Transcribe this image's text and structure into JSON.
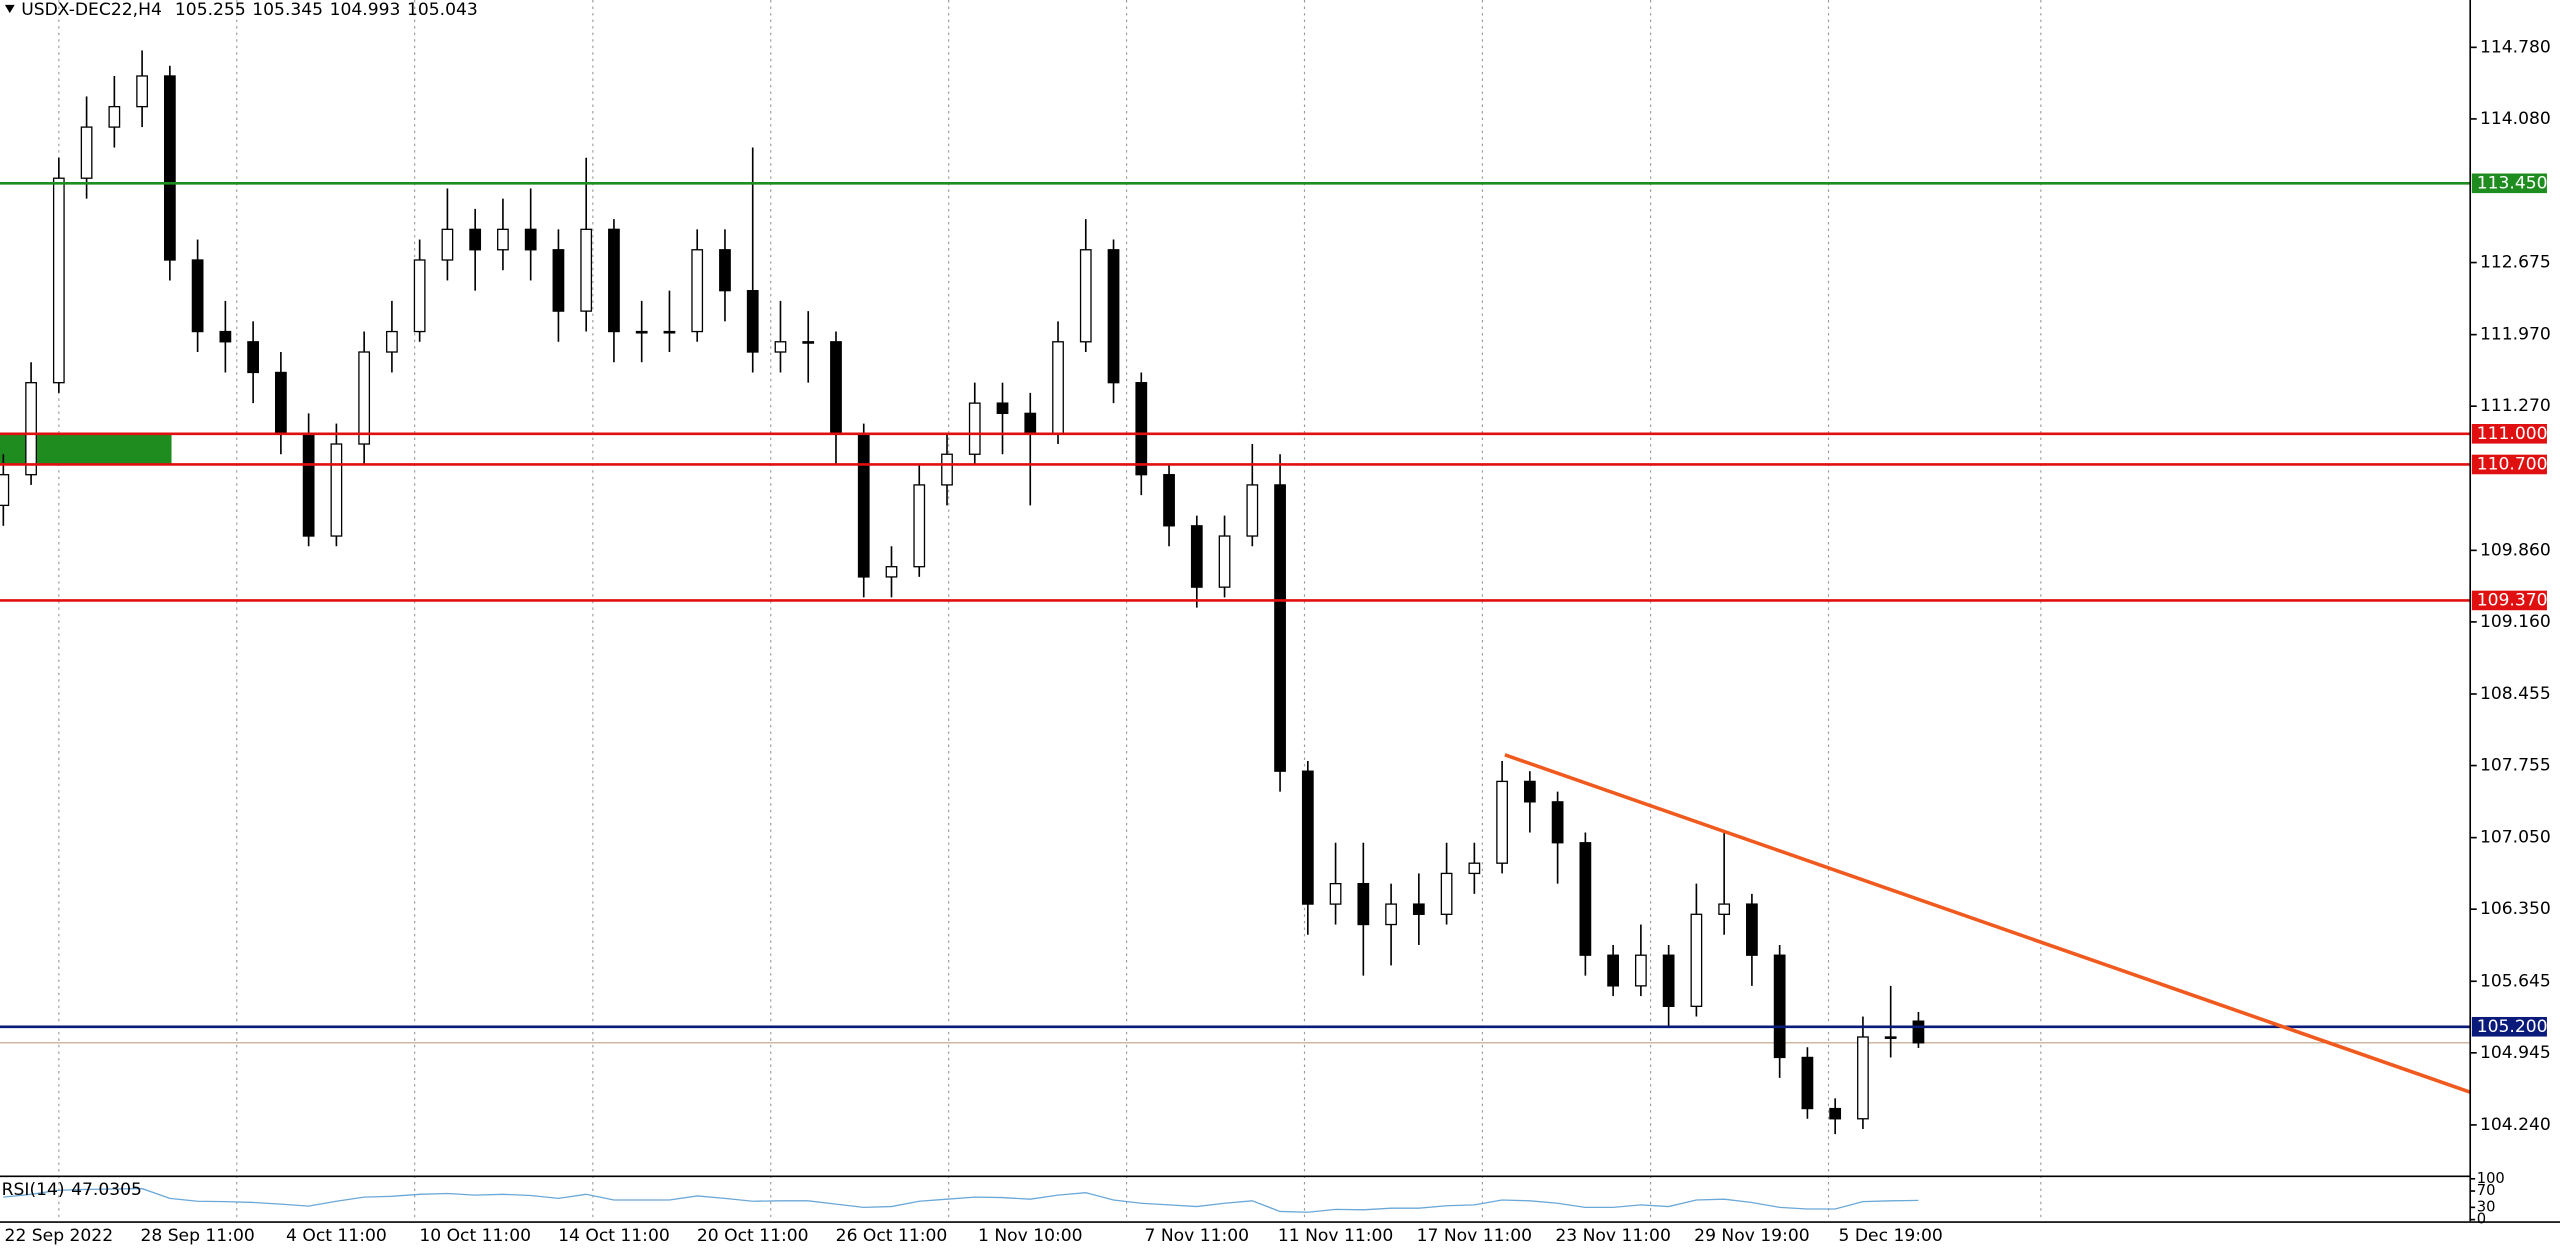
{
  "chart_data": {
    "type": "candlestick",
    "title": "USDX-DEC22,H4",
    "categories": [
      null,
      null,
      "22 Sep 2022",
      null,
      null,
      null,
      null,
      "28 Sep 11:00",
      null,
      null,
      null,
      null,
      "4 Oct 11:00",
      null,
      null,
      null,
      null,
      "10 Oct 11:00",
      null,
      null,
      null,
      null,
      "14 Oct 11:00",
      null,
      null,
      null,
      null,
      "20 Oct 11:00",
      null,
      null,
      null,
      null,
      "26 Oct 11:00",
      null,
      null,
      null,
      null,
      "1 Nov 10:00",
      null,
      null,
      null,
      null,
      null,
      "7 Nov 11:00",
      null,
      null,
      null,
      null,
      "11 Nov 11:00",
      null,
      null,
      null,
      null,
      "17 Nov 11:00",
      null,
      null,
      null,
      null,
      "23 Nov 11:00",
      null,
      null,
      null,
      null,
      "29 Nov 19:00",
      null,
      null,
      null,
      null,
      "5 Dec 19:00",
      null
    ],
    "open": [
      110.3,
      110.6,
      111.5,
      113.5,
      114.0,
      114.2,
      114.5,
      112.7,
      112.0,
      111.9,
      111.6,
      111.0,
      110.0,
      110.9,
      111.8,
      112.0,
      112.7,
      113.0,
      112.8,
      113.0,
      112.8,
      112.2,
      113.0,
      112.0,
      112.0,
      112.0,
      112.8,
      112.4,
      111.8,
      111.9,
      111.9,
      111.0,
      109.6,
      109.7,
      110.5,
      110.8,
      111.3,
      111.2,
      111.0,
      111.9,
      112.8,
      111.5,
      110.6,
      110.1,
      109.5,
      110.0,
      110.5,
      107.7,
      106.4,
      106.6,
      106.2,
      106.4,
      106.3,
      106.7,
      106.8,
      107.6,
      107.4,
      107.0,
      105.9,
      105.6,
      105.9,
      105.4,
      106.3,
      106.4,
      105.9,
      104.9,
      104.4,
      104.3,
      105.1,
      105.255
    ],
    "high": [
      110.8,
      111.7,
      113.7,
      114.3,
      114.5,
      114.75,
      114.6,
      112.9,
      112.3,
      112.1,
      111.8,
      111.2,
      111.1,
      112.0,
      112.3,
      112.9,
      113.4,
      113.2,
      113.3,
      113.4,
      113.0,
      113.7,
      113.1,
      112.3,
      112.4,
      113.0,
      113.0,
      113.8,
      112.3,
      112.2,
      112.0,
      111.1,
      109.9,
      110.7,
      111.0,
      111.5,
      111.5,
      111.4,
      112.1,
      113.1,
      112.9,
      111.6,
      110.7,
      110.2,
      110.2,
      110.9,
      110.8,
      107.8,
      107.0,
      107.0,
      106.6,
      106.7,
      107.0,
      107.0,
      107.8,
      107.7,
      107.5,
      107.1,
      106.0,
      106.2,
      106.0,
      106.6,
      107.1,
      106.5,
      106.0,
      105.0,
      104.5,
      105.3,
      105.6,
      105.345
    ],
    "low": [
      110.1,
      110.5,
      111.4,
      113.3,
      113.8,
      114.0,
      112.5,
      111.8,
      111.6,
      111.3,
      110.8,
      109.9,
      109.9,
      110.7,
      111.6,
      111.9,
      112.5,
      112.4,
      112.6,
      112.5,
      111.9,
      112.0,
      111.7,
      111.7,
      111.8,
      111.9,
      112.1,
      111.6,
      111.6,
      111.5,
      110.7,
      109.4,
      109.4,
      109.6,
      110.3,
      110.7,
      110.8,
      110.3,
      110.9,
      111.8,
      111.3,
      110.4,
      109.9,
      109.3,
      109.4,
      109.9,
      107.5,
      106.1,
      106.2,
      105.7,
      105.8,
      106.0,
      106.2,
      106.5,
      106.7,
      107.1,
      106.6,
      105.7,
      105.5,
      105.5,
      105.2,
      105.3,
      106.1,
      105.6,
      104.7,
      104.3,
      104.15,
      104.2,
      104.9,
      104.993
    ],
    "close": [
      110.6,
      111.5,
      113.5,
      114.0,
      114.2,
      114.5,
      112.7,
      112.0,
      111.9,
      111.6,
      111.0,
      110.0,
      110.9,
      111.8,
      112.0,
      112.7,
      113.0,
      112.8,
      113.0,
      112.8,
      112.2,
      113.0,
      112.0,
      112.0,
      112.0,
      112.8,
      112.4,
      111.8,
      111.9,
      111.9,
      111.0,
      109.6,
      109.7,
      110.5,
      110.8,
      111.3,
      111.2,
      111.0,
      111.9,
      112.8,
      111.5,
      110.6,
      110.1,
      109.5,
      110.0,
      110.5,
      107.7,
      106.4,
      106.6,
      106.2,
      106.4,
      106.3,
      106.7,
      106.8,
      107.6,
      107.4,
      107.0,
      105.9,
      105.6,
      105.9,
      105.4,
      106.3,
      106.4,
      105.9,
      104.9,
      104.4,
      104.3,
      105.1,
      105.1,
      105.043
    ],
    "xlim": [
      -0.12,
      88.88
    ],
    "xgrid": [
      2,
      8.41,
      14.82,
      21.24,
      27.65,
      34.06,
      40.47,
      46.88,
      53.29,
      59.35,
      65.76,
      73.41
    ],
    "ylim": [
      103.745,
      115.243
    ],
    "yticks": [
      {
        "value": 114.78,
        "label": "114.780"
      },
      {
        "value": 114.08,
        "label": "114.080"
      },
      112.675,
      {
        "value": 111.97,
        "label": "111.970"
      },
      {
        "value": 111.27,
        "label": "111.270"
      },
      {
        "value": 109.86,
        "label": "109.860"
      },
      {
        "value": 109.16,
        "label": "109.160"
      },
      108.455,
      {
        "value": 107.755,
        "label": "107.755"
      },
      {
        "value": 107.05,
        "label": "107.050"
      },
      {
        "value": 106.35,
        "label": "106.350"
      },
      105.645,
      104.945,
      {
        "value": 104.24,
        "label": "104.240"
      }
    ],
    "levels": [
      {
        "value": 113.45,
        "label": "113.450",
        "color": "#1e8c1e"
      },
      {
        "value": 111.0,
        "label": "111.000",
        "color": "#e01010"
      },
      {
        "value": 110.7,
        "label": "110.700",
        "color": "#e01010"
      },
      {
        "value": 109.37,
        "label": "109.370",
        "color": "#e01010"
      },
      {
        "value": 105.2,
        "label": "105.200",
        "color": "#0a1a7a"
      }
    ],
    "zone": {
      "x": [
        -0.12,
        6.06
      ],
      "y": [
        110.7,
        111.0
      ],
      "color": "#1e8c1e"
    },
    "trend_line": {
      "x": [
        54.1,
        88.88
      ],
      "y": [
        107.86,
        104.56
      ],
      "color": "#f05a1e"
    },
    "rsi": {
      "name": "RSI(14)",
      "color": "#6aa8d8",
      "ylim": [
        0,
        100
      ],
      "yticks": [
        100,
        70,
        30,
        0
      ],
      "values": [
        55,
        62,
        72,
        74,
        75,
        76,
        52,
        45,
        44,
        42,
        38,
        33,
        45,
        55,
        57,
        62,
        64,
        60,
        62,
        59,
        52,
        62,
        48,
        48,
        48,
        58,
        52,
        45,
        46,
        46,
        38,
        30,
        32,
        45,
        50,
        55,
        54,
        50,
        60,
        66,
        48,
        40,
        36,
        32,
        40,
        46,
        20,
        18,
        25,
        24,
        28,
        28,
        34,
        36,
        48,
        46,
        40,
        30,
        30,
        36,
        32,
        48,
        50,
        42,
        30,
        26,
        26,
        44,
        46,
        47.0305
      ]
    }
  }
}
